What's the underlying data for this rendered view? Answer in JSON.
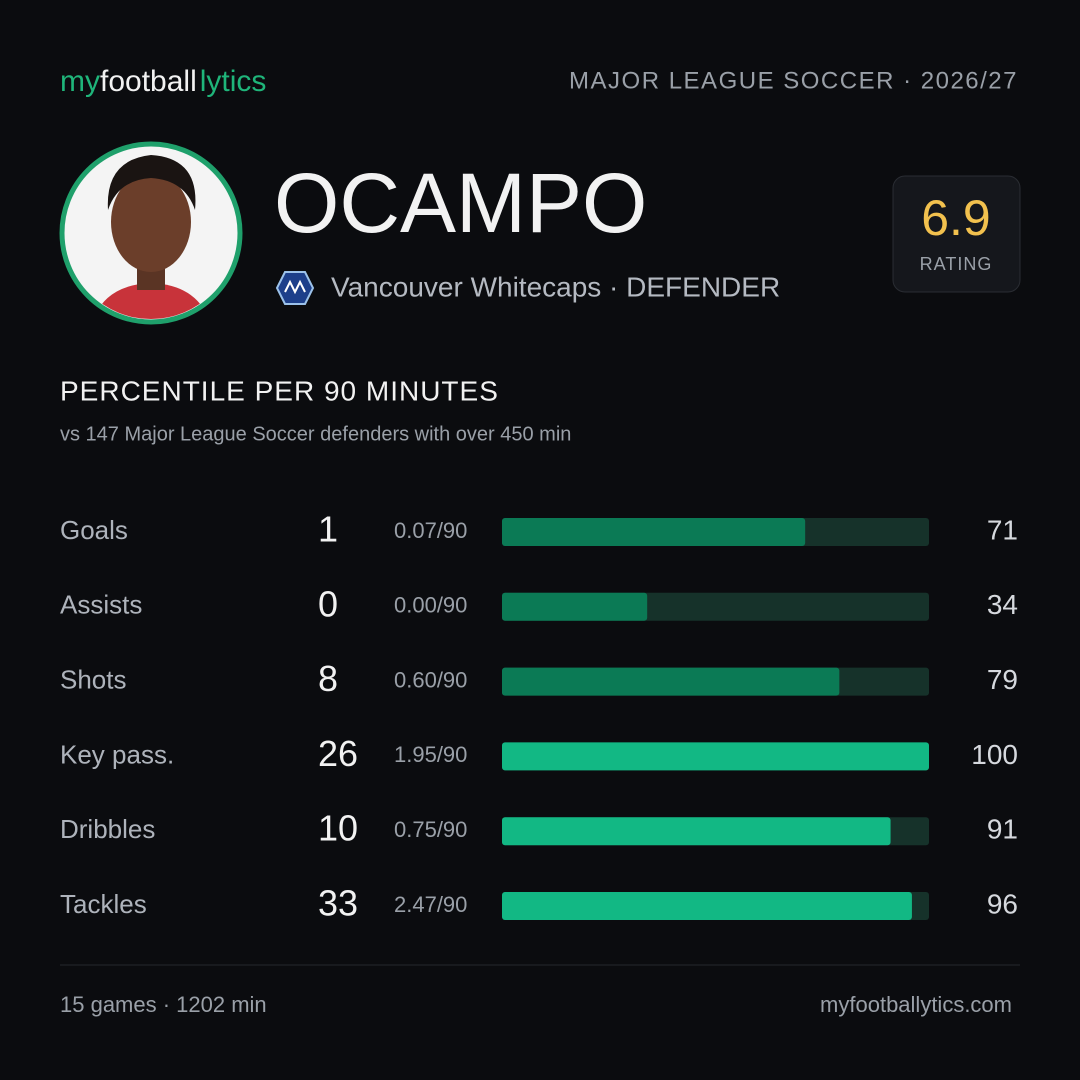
{
  "header": {
    "brand": [
      "my",
      "football",
      "lytics"
    ],
    "league": "MAJOR LEAGUE SOCCER · 2026/27"
  },
  "player": {
    "name": "OCAMPO",
    "team_line": "Vancouver Whitecaps · DEFENDER",
    "rating": 6.9,
    "rating_label": "RATING"
  },
  "section": {
    "title": "PERCENTILE PER 90 MINUTES",
    "subtitle": "vs 147 Major League Soccer defenders with over 450 min"
  },
  "stats": {
    "percentile_range": [
      0,
      100
    ],
    "rows": [
      {
        "label": "Goals",
        "total": 1,
        "per90": "0.07/90",
        "percentile": 71,
        "color": "#0b7a55"
      },
      {
        "label": "Assists",
        "total": 0,
        "per90": "0.00/90",
        "percentile": 34,
        "color": "#0b7a55"
      },
      {
        "label": "Shots",
        "total": 8,
        "per90": "0.60/90",
        "percentile": 79,
        "color": "#0b7a55"
      },
      {
        "label": "Key pass.",
        "total": 26,
        "per90": "1.95/90",
        "percentile": 100,
        "color": "#12b884"
      },
      {
        "label": "Dribbles",
        "total": 10,
        "per90": "0.75/90",
        "percentile": 91,
        "color": "#12b884"
      },
      {
        "label": "Tackles",
        "total": 33,
        "per90": "2.47/90",
        "percentile": 96,
        "color": "#12b884"
      }
    ]
  },
  "footer": {
    "left": "15 games · 1202 min",
    "right": "myfootballytics.com"
  }
}
